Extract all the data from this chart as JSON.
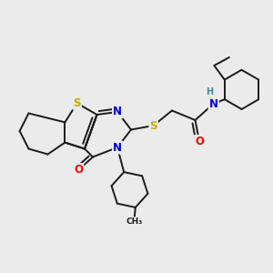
{
  "bg_color": "#ebebeb",
  "atom_colors": {
    "S": "#ccaa00",
    "N": "#0000cc",
    "O": "#ff0000",
    "C": "#1a1a1a",
    "H": "#4488aa"
  },
  "bond_color": "#1a1a1a",
  "bond_width": 1.4,
  "font_size_atom": 8.5,
  "font_size_H": 7.0
}
